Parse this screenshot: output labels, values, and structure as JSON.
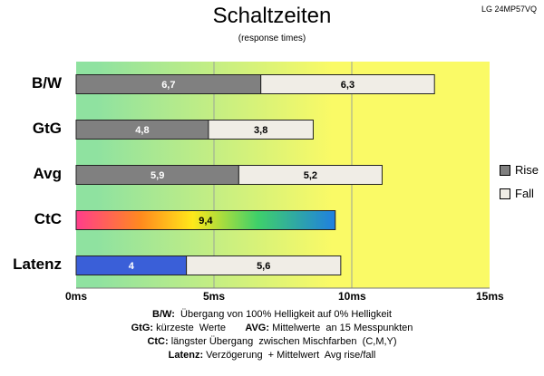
{
  "chart_data": {
    "type": "bar",
    "orientation": "horizontal",
    "stacked": true,
    "title": "Schaltzeiten",
    "subtitle": "(response times)",
    "model_label": "LG 24MP57VQ",
    "categories": [
      "B/W",
      "GtG",
      "Avg",
      "CtC",
      "Latenz"
    ],
    "series": [
      {
        "name": "Rise",
        "values": [
          6.7,
          4.8,
          5.9,
          9.4,
          4
        ],
        "labels": [
          "6,7",
          "4,8",
          "5,9",
          "9,4",
          "4"
        ]
      },
      {
        "name": "Fall",
        "values": [
          6.3,
          3.8,
          5.2,
          null,
          5.6
        ],
        "labels": [
          "6,3",
          "3,8",
          "5,2",
          "",
          "5,6"
        ]
      }
    ],
    "xlim": [
      0,
      15
    ],
    "x_ticks": [
      0,
      5,
      10,
      15
    ],
    "x_tick_labels": [
      "0ms",
      "5ms",
      "10ms",
      "15ms"
    ],
    "grid": true,
    "legend_position": "right",
    "colors": {
      "rise": "#808080",
      "fall": "#f0ede6",
      "latenz_rise": "#3a5fd8",
      "background_left": "#8fe2a0",
      "background_right": "#fafa66"
    }
  },
  "notes": [
    {
      "key": "B/W:",
      "text": "  Übergang von 100% Helligkeit auf 0% Helligkeit"
    },
    {
      "key": "GtG:",
      "text": " kürzeste  Werte       ",
      "key2": "AVG:",
      "text2": " Mittelwerte  an 15 Messpunkten"
    },
    {
      "key": "CtC:",
      "text": " längster Übergang  zwischen Mischfarben  (C,M,Y)"
    },
    {
      "key": "Latenz:",
      "text": " Verzögerung  + Mittelwert  Avg rise/fall"
    }
  ]
}
